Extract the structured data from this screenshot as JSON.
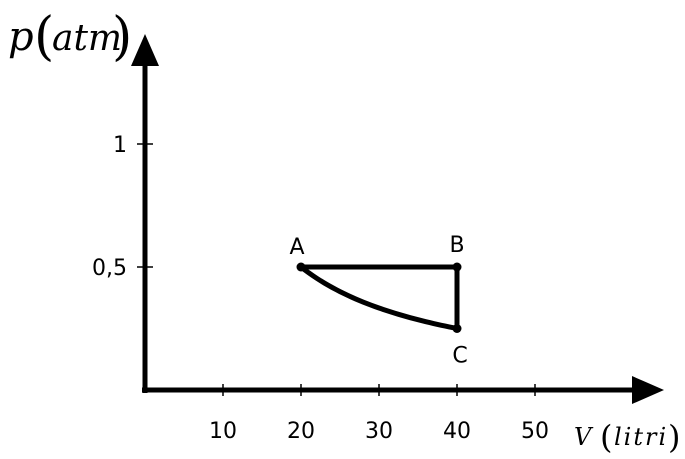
{
  "chart_data": {
    "type": "line",
    "title": "",
    "xlabel": {
      "symbol": "V",
      "unit": "litri"
    },
    "ylabel": {
      "symbol": "p",
      "unit": "atm"
    },
    "x_ticks": [
      "10",
      "20",
      "30",
      "40",
      "50"
    ],
    "x_tick_values": [
      10,
      20,
      30,
      40,
      50
    ],
    "y_ticks": [
      "0,5",
      "1"
    ],
    "y_tick_values": [
      0.5,
      1
    ],
    "xlim": [
      0,
      62
    ],
    "ylim": [
      0,
      1.5
    ],
    "grid": false,
    "points": [
      {
        "label": "A",
        "x": 20,
        "y": 0.5
      },
      {
        "label": "B",
        "x": 40,
        "y": 0.5
      },
      {
        "label": "C",
        "x": 40,
        "y": 0.25
      }
    ],
    "segments": [
      {
        "name": "A-B",
        "kind": "isobaric",
        "from": "A",
        "to": "B"
      },
      {
        "name": "B-C",
        "kind": "isochoric",
        "from": "B",
        "to": "C"
      },
      {
        "name": "C-A",
        "kind": "isothermal",
        "from": "C",
        "to": "A"
      }
    ]
  }
}
